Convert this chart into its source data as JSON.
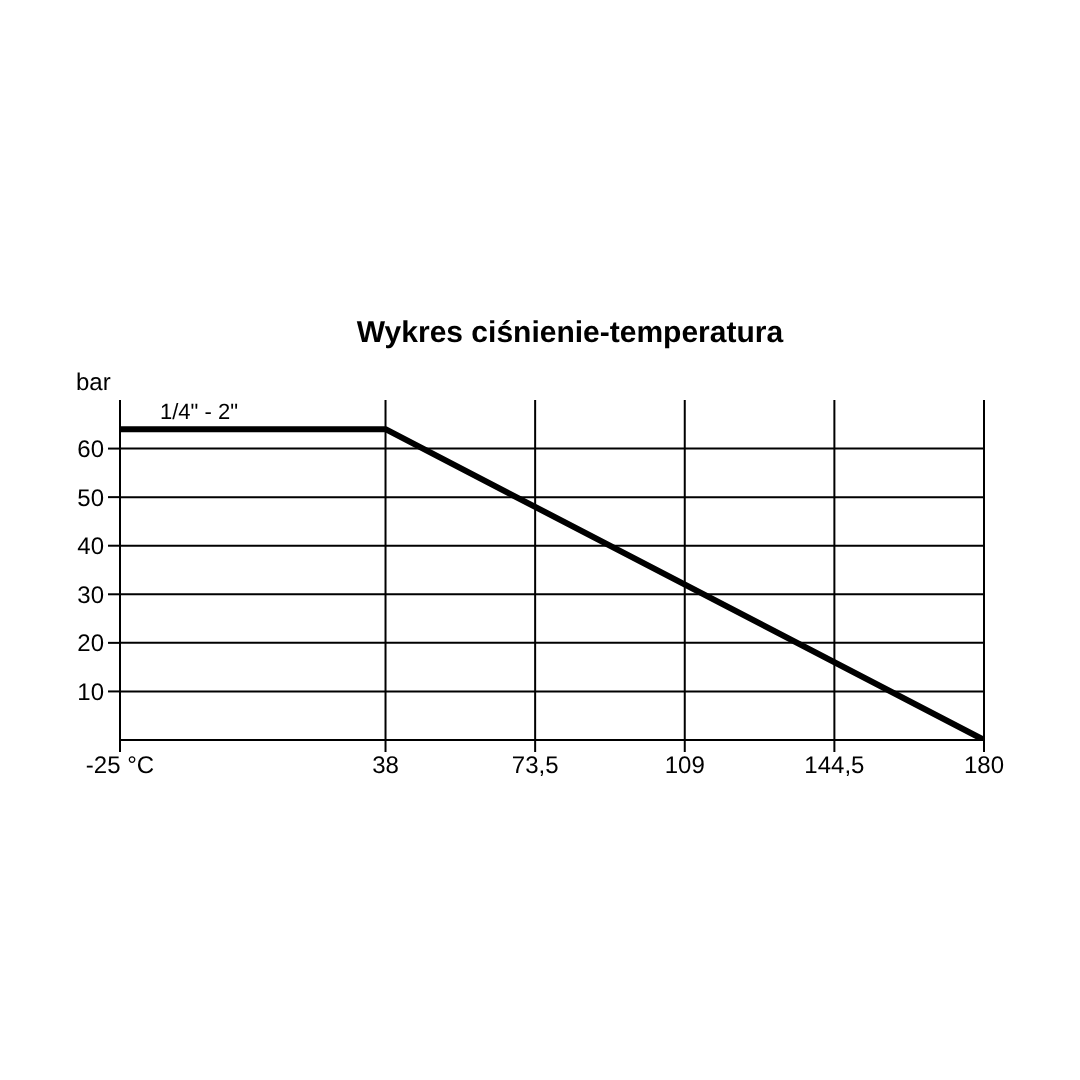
{
  "chart_data": {
    "type": "line",
    "title": "Wykres ciśnienie-temperatura",
    "ylabel": "bar",
    "x": [
      -25,
      38,
      180
    ],
    "series": [
      {
        "name": "1/4\" - 2\"",
        "color": "#000000",
        "values": [
          64,
          64,
          0
        ]
      }
    ],
    "xlim": [
      -25,
      180
    ],
    "xticks": [
      {
        "value": -25,
        "label": "-25 °C"
      },
      38,
      {
        "value": 73.5,
        "label": "73,5"
      },
      109,
      {
        "value": 144.5,
        "label": "144,5"
      },
      180
    ],
    "ylim": [
      0,
      70
    ],
    "yticks": [
      10,
      20,
      30,
      40,
      50,
      60
    ],
    "grid": true,
    "marker": "none",
    "line_style": "solid"
  }
}
